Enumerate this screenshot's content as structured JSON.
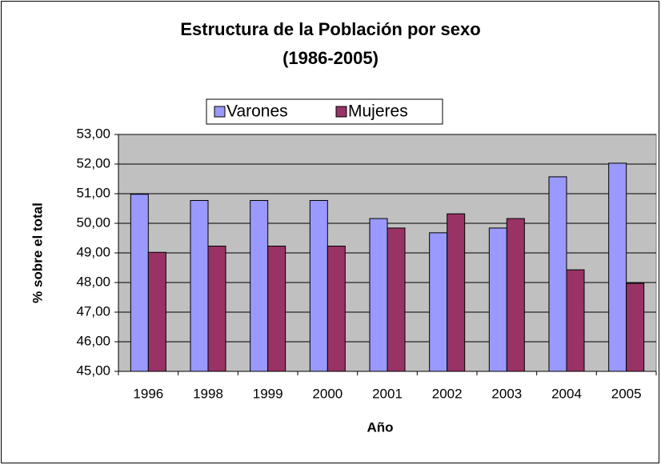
{
  "chart_data": {
    "type": "bar",
    "title": "Estructura de la Población por sexo",
    "subtitle": "(1986-2005)",
    "x_label": "Año",
    "y_label": "% sobre el total",
    "categories": [
      "1996",
      "1998",
      "1999",
      "2000",
      "2001",
      "2002",
      "2003",
      "2004",
      "2005"
    ],
    "series": [
      {
        "name": "Varones",
        "color": "#9999ff",
        "values": [
          50.98,
          50.77,
          50.77,
          50.77,
          50.16,
          49.68,
          49.84,
          51.57,
          52.03
        ]
      },
      {
        "name": "Mujeres",
        "color": "#993366",
        "values": [
          49.02,
          49.23,
          49.23,
          49.23,
          49.84,
          50.32,
          50.16,
          48.43,
          47.97
        ]
      }
    ],
    "ylim": [
      45,
      53
    ],
    "yticks": [
      {
        "value": 45,
        "label": "45,00"
      },
      {
        "value": 46,
        "label": "46,00"
      },
      {
        "value": 47,
        "label": "47,00"
      },
      {
        "value": 48,
        "label": "48,00"
      },
      {
        "value": 49,
        "label": "49,00"
      },
      {
        "value": 50,
        "label": "50,00"
      },
      {
        "value": 51,
        "label": "51,00"
      },
      {
        "value": 52,
        "label": "52,00"
      },
      {
        "value": 53,
        "label": "53,00"
      }
    ],
    "grid": true,
    "legend": "top"
  }
}
